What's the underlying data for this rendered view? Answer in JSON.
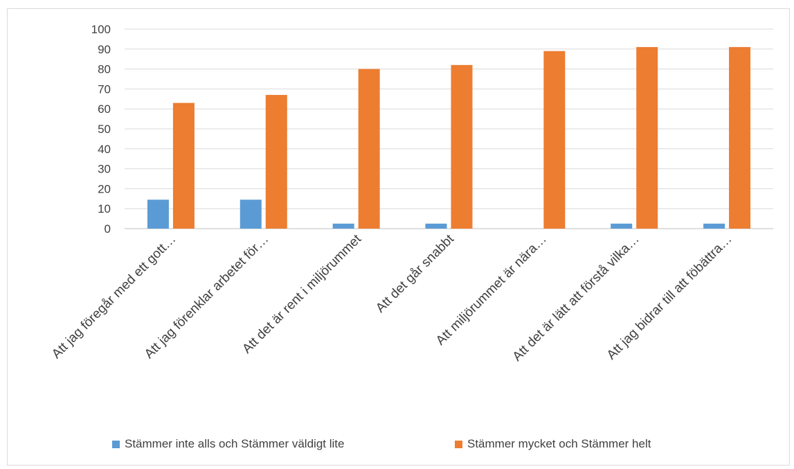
{
  "chart_data": {
    "type": "bar",
    "title": "",
    "xlabel": "",
    "ylabel": "",
    "ylim": [
      0,
      100
    ],
    "yticks": [
      "0",
      "10",
      "20",
      "30",
      "40",
      "50",
      "60",
      "70",
      "80",
      "90",
      "100"
    ],
    "grid": true,
    "legend_position": "bottom",
    "categories": [
      "Att jag föregår med ett gott…",
      "Att jag förenklar arbetet för…",
      "Att det är rent i miljörummet",
      "Att det går snabbt",
      "Att miljörummet är nära…",
      "Att det är lätt att förstå vilka…",
      "Att jag bidrar till att föbättra…"
    ],
    "series": [
      {
        "name": "Stämmer inte alls och Stämmer väldigt lite",
        "color": "#5B9BD5",
        "values": [
          14.5,
          14.5,
          2.5,
          2.5,
          0,
          2.5,
          2.5
        ]
      },
      {
        "name": "Stämmer mycket och Stämmer helt",
        "color": "#ED7D31",
        "values": [
          63,
          67,
          80,
          82,
          89,
          91,
          91
        ]
      }
    ]
  }
}
